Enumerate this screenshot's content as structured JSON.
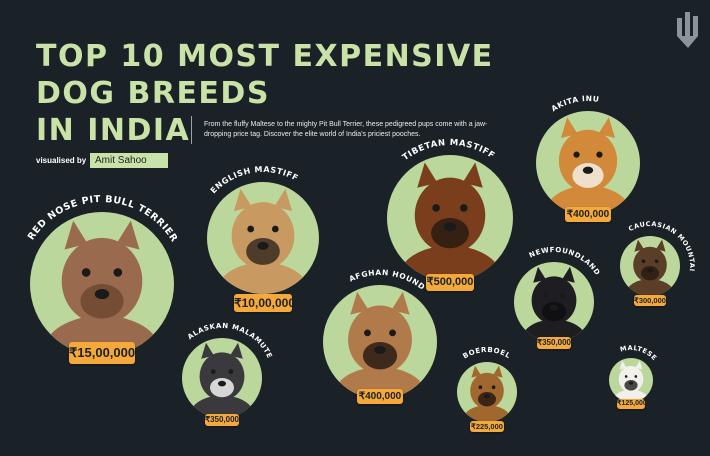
{
  "title_lines": [
    "TOP 10 MOST EXPENSIVE",
    "DOG BREEDS",
    "IN INDIA"
  ],
  "subtitle": "From the fluffy Maltese to the mighty Pit Bull Terrier, these pedigreed pups come with a jaw-dropping price tag. Discover the elite world of India's priciest pooches.",
  "credit": {
    "label": "visualised by",
    "name": "Amit Sahoo"
  },
  "colors": {
    "background": "#1b2227",
    "title": "#c9e2a8",
    "circle": "#bcd79c",
    "price_tag": "#f5a93a",
    "label_text": "#ffffff"
  },
  "brand_icon": "pencil-bars-logo",
  "chart_data": {
    "type": "bubble",
    "currency": "₹",
    "items": [
      {
        "breed": "RED NOSE PIT BULL TERRIER",
        "price_label": "₹15,00,000",
        "value": 1500000,
        "fur": "#9a6a4e",
        "fur_dark": "#6e4630"
      },
      {
        "breed": "ENGLISH MASTIFF",
        "price_label": "₹10,00,000",
        "value": 1000000,
        "fur": "#c89a62",
        "fur_dark": "#3a2a20"
      },
      {
        "breed": "TIBETAN MASTIFF",
        "price_label": "₹500,000",
        "value": 500000,
        "fur": "#7a3e1c",
        "fur_dark": "#2a1a12"
      },
      {
        "breed": "AKITA INU",
        "price_label": "₹400,000",
        "value": 400000,
        "fur": "#d28a3a",
        "fur_dark": "#f4efe6"
      },
      {
        "breed": "AFGHAN HOUND",
        "price_label": "₹400,000",
        "value": 400000,
        "fur": "#b07a4a",
        "fur_dark": "#2a1c14"
      },
      {
        "breed": "ALASKAN MALAMUTE",
        "price_label": "₹350,000",
        "value": 350000,
        "fur": "#3a3a3e",
        "fur_dark": "#f2f2f2"
      },
      {
        "breed": "NEWFOUNDLAND",
        "price_label": "₹350,000",
        "value": 350000,
        "fur": "#1e1e22",
        "fur_dark": "#0e0e10"
      },
      {
        "breed": "CAUCASIAN MOUNTAIN SHEPHERD",
        "price_label": "₹300,000",
        "value": 300000,
        "fur": "#5a3e28",
        "fur_dark": "#2a1c12"
      },
      {
        "breed": "BOERBOEL",
        "price_label": "₹225,000",
        "value": 225000,
        "fur": "#a0682e",
        "fur_dark": "#2a1a12"
      },
      {
        "breed": "MALTESE",
        "price_label": "₹125,000",
        "value": 125000,
        "fur": "#f2f0ea",
        "fur_dark": "#2a2a2a"
      }
    ]
  }
}
